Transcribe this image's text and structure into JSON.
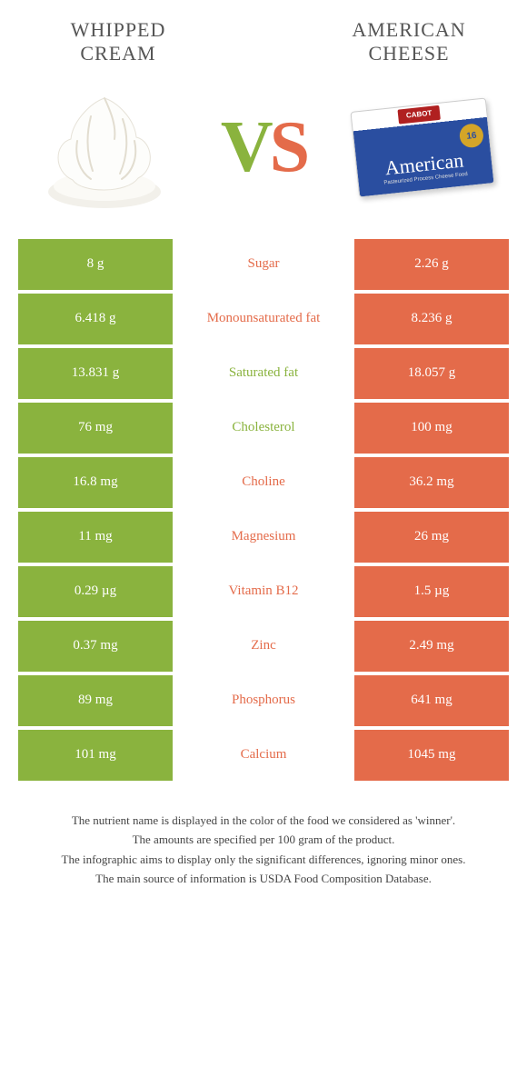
{
  "header": {
    "left_title": "WHIPPED CREAM",
    "right_title": "AMERICAN CHEESE",
    "vs_v": "V",
    "vs_s": "S"
  },
  "colors": {
    "green": "#8ab33e",
    "orange": "#e46b4a",
    "background": "#ffffff"
  },
  "cheese": {
    "brand": "CABOT",
    "script": "American",
    "sub": "Pasteurized Process\nCheese Food",
    "badge": "16"
  },
  "rows": [
    {
      "left": "8 g",
      "label": "Sugar",
      "right": "2.26 g",
      "winner": "orange"
    },
    {
      "left": "6.418 g",
      "label": "Monounsaturated fat",
      "right": "8.236 g",
      "winner": "orange"
    },
    {
      "left": "13.831 g",
      "label": "Saturated fat",
      "right": "18.057 g",
      "winner": "green"
    },
    {
      "left": "76 mg",
      "label": "Cholesterol",
      "right": "100 mg",
      "winner": "green"
    },
    {
      "left": "16.8 mg",
      "label": "Choline",
      "right": "36.2 mg",
      "winner": "orange"
    },
    {
      "left": "11 mg",
      "label": "Magnesium",
      "right": "26 mg",
      "winner": "orange"
    },
    {
      "left": "0.29 µg",
      "label": "Vitamin B12",
      "right": "1.5 µg",
      "winner": "orange"
    },
    {
      "left": "0.37 mg",
      "label": "Zinc",
      "right": "2.49 mg",
      "winner": "orange"
    },
    {
      "left": "89 mg",
      "label": "Phosphorus",
      "right": "641 mg",
      "winner": "orange"
    },
    {
      "left": "101 mg",
      "label": "Calcium",
      "right": "1045 mg",
      "winner": "orange"
    }
  ],
  "footnotes": [
    "The nutrient name is displayed in the color of the food we considered as 'winner'.",
    "The amounts are specified per 100 gram of the product.",
    "The infographic aims to display only the significant differences, ignoring minor ones.",
    "The main source of information is USDA Food Composition Database."
  ]
}
